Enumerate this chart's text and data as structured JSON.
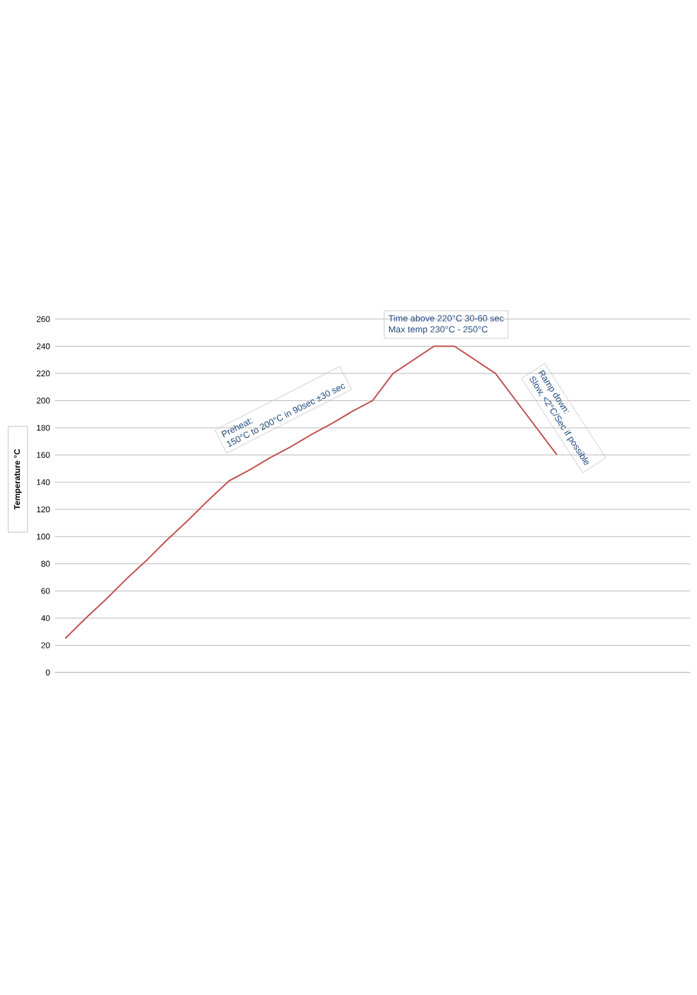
{
  "chart_data": {
    "type": "line",
    "ylabel": "Temperature °C",
    "categories": [
      null,
      null,
      null,
      null,
      null,
      null,
      null,
      null,
      null,
      null,
      null,
      null,
      null,
      null,
      null,
      null,
      null,
      null,
      null,
      null,
      null,
      null,
      null,
      null,
      null,
      null,
      null,
      null,
      null,
      null,
      null
    ],
    "values": [
      25,
      40,
      54,
      69,
      83,
      98,
      112,
      127,
      141,
      149,
      158,
      166,
      175,
      183,
      192,
      200,
      220,
      230,
      240,
      240,
      230,
      220,
      200,
      180,
      160,
      null,
      null,
      null,
      null,
      null,
      null
    ],
    "color": "#c0504d",
    "ylim": [
      0,
      260
    ],
    "yticks": [
      0,
      20,
      40,
      60,
      80,
      100,
      120,
      140,
      160,
      180,
      200,
      220,
      240,
      260
    ],
    "grid": "y",
    "annotations": [
      "Preheat:",
      "150°C to 200°C in 90sec ±30 sec",
      "Time above 220°C 30-60 sec",
      "Max temp 230°C -  250°C",
      "Ramp down:",
      "Slow, <2°C/Sec if possible"
    ]
  }
}
